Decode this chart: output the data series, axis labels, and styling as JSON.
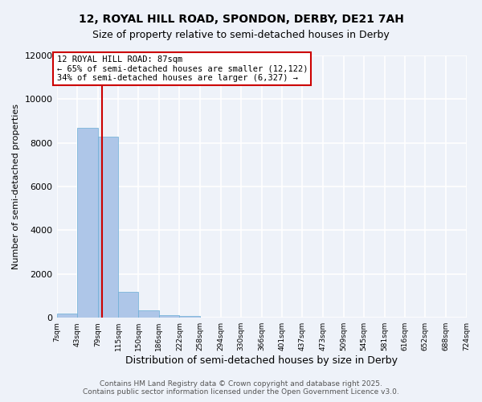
{
  "title1": "12, ROYAL HILL ROAD, SPONDON, DERBY, DE21 7AH",
  "title2": "Size of property relative to semi-detached houses in Derby",
  "xlabel": "Distribution of semi-detached houses by size in Derby",
  "ylabel": "Number of semi-detached properties",
  "bin_labels": [
    "7sqm",
    "43sqm",
    "79sqm",
    "115sqm",
    "150sqm",
    "186sqm",
    "222sqm",
    "258sqm",
    "294sqm",
    "330sqm",
    "366sqm",
    "401sqm",
    "437sqm",
    "473sqm",
    "509sqm",
    "545sqm",
    "581sqm",
    "616sqm",
    "652sqm",
    "688sqm",
    "724sqm"
  ],
  "bin_edges": [
    7,
    43,
    79,
    115,
    150,
    186,
    222,
    258,
    294,
    330,
    366,
    401,
    437,
    473,
    509,
    545,
    581,
    616,
    652,
    688,
    724
  ],
  "bar_heights": [
    200,
    8700,
    8300,
    1200,
    350,
    100,
    80,
    0,
    0,
    0,
    0,
    0,
    0,
    0,
    0,
    0,
    0,
    0,
    0,
    0
  ],
  "bar_color": "#aec6e8",
  "bar_edge_color": "#6baed6",
  "property_size": 87,
  "red_line_color": "#cc0000",
  "annotation_line1": "12 ROYAL HILL ROAD: 87sqm",
  "annotation_line2": "← 65% of semi-detached houses are smaller (12,122)",
  "annotation_line3": "34% of semi-detached houses are larger (6,327) →",
  "annotation_box_color": "#ffffff",
  "annotation_border_color": "#cc0000",
  "ylim": [
    0,
    12000
  ],
  "yticks": [
    0,
    2000,
    4000,
    6000,
    8000,
    10000,
    12000
  ],
  "background_color": "#eef2f9",
  "grid_color": "#ffffff",
  "footer_line1": "Contains HM Land Registry data © Crown copyright and database right 2025.",
  "footer_line2": "Contains public sector information licensed under the Open Government Licence v3.0."
}
